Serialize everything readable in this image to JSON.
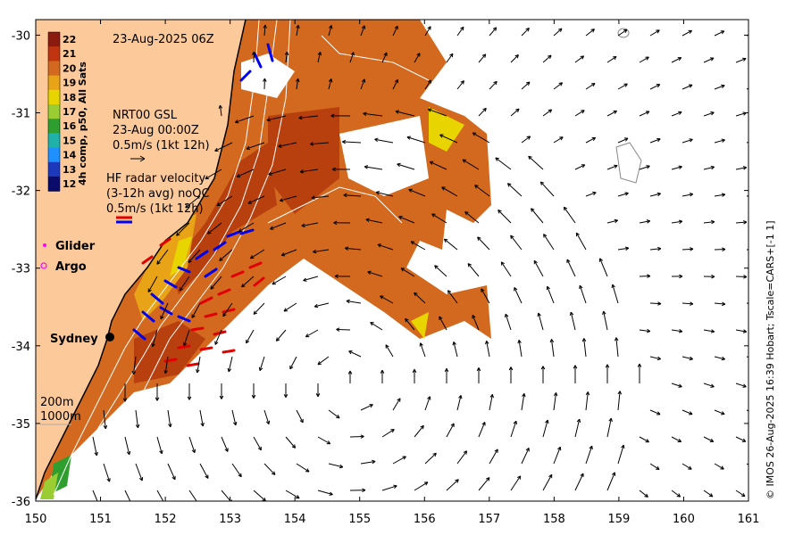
{
  "map": {
    "lon_range": [
      150,
      161
    ],
    "lat_range": [
      -36,
      -29.8
    ],
    "x_ticks": [
      150,
      151,
      152,
      153,
      154,
      155,
      156,
      157,
      158,
      159,
      160,
      161
    ],
    "y_ticks": [
      -30,
      -31,
      -32,
      -33,
      -34,
      -35,
      -36
    ],
    "x_tick_labels": [
      "150",
      "151",
      "152",
      "153",
      "154",
      "155",
      "156",
      "157",
      "158",
      "159",
      "160",
      "161"
    ],
    "y_tick_labels": [
      "-30",
      "-31",
      "-32",
      "-33",
      "-34",
      "-35",
      "-36"
    ]
  },
  "colorbar": {
    "title": "4h comp, p50, All Sats",
    "labels": [
      "22",
      "21",
      "20",
      "19",
      "18",
      "17",
      "16",
      "15",
      "14",
      "13",
      "12"
    ],
    "colors": [
      "#8b1a0f",
      "#c0350f",
      "#d2691e",
      "#e8a317",
      "#e8d500",
      "#9acd32",
      "#2e9e2e",
      "#20b2aa",
      "#1e90ff",
      "#1c39bb",
      "#0b0b6b"
    ]
  },
  "annotations": {
    "timestamp": "23-Aug-2025 06Z",
    "nrt_title": "NRT00 GSL",
    "nrt_time": "23-Aug 00:00Z",
    "nrt_scale": "0.5m/s (1kt 12h)",
    "hf_title": "HF radar velocity",
    "hf_sub": "(3-12h avg) noQC",
    "hf_scale": "0.5m/s (1kt 12h)",
    "glider": "Glider",
    "argo": "Argo",
    "city": "Sydney",
    "depth_200": "200m",
    "depth_1000": "1000m"
  },
  "credit": "© IMOS 26-Aug-2025 16:39 Hobart; Tscale=CARS+[-1 1]",
  "colors": {
    "land": "#fcc99a",
    "sst_warm": "#d2691e",
    "sst_hot": "#b8400f",
    "sst_mid": "#e8a317",
    "sst_yellow": "#e8d500",
    "hf_red": "#e00000",
    "hf_blue": "#0000ee",
    "contour": "#ffffff",
    "argo": "#ff00ff"
  }
}
